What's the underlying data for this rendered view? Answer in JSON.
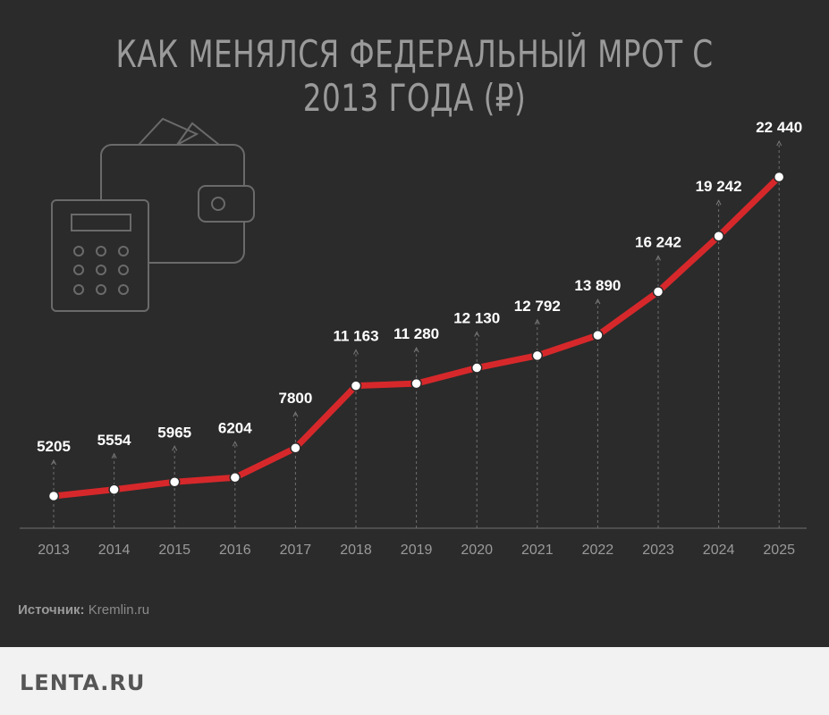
{
  "title": "КАК МЕНЯЛСЯ ФЕДЕРАЛЬНЫЙ МРОТ С 2013 ГОДА (₽)",
  "source": {
    "label": "Источник:",
    "value": "Kremlin.ru"
  },
  "footer": {
    "logo": "LENTA.RU"
  },
  "chart_data": {
    "type": "line",
    "title": "КАК МЕНЯЛСЯ ФЕДЕРАЛЬНЫЙ МРОТ С 2013 ГОДА (₽)",
    "xlabel": "",
    "ylabel": "",
    "categories": [
      "2013",
      "2014",
      "2015",
      "2016",
      "2017",
      "2018",
      "2019",
      "2020",
      "2021",
      "2022",
      "2023",
      "2024",
      "2025"
    ],
    "values": [
      5205,
      5554,
      5965,
      6204,
      7800,
      11163,
      11280,
      12130,
      12792,
      13890,
      16242,
      19242,
      22440
    ],
    "labels": [
      "5205",
      "5554",
      "5965",
      "6204",
      "7800",
      "11 163",
      "11 280",
      "12 130",
      "12 792",
      "13 890",
      "16 242",
      "19 242",
      "22 440"
    ],
    "ylim": [
      3000,
      24000
    ],
    "grid": false,
    "colors": {
      "line": "#d6282b",
      "marker": "#ffffff",
      "label": "#ffffff",
      "tick": "#9a9a9a",
      "axis": "#5a5a5a"
    }
  },
  "decor": {
    "icon": "wallet-calculator-icon"
  }
}
